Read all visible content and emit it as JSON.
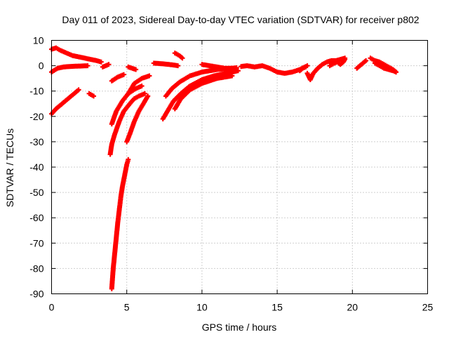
{
  "chart_data": {
    "type": "scatter",
    "title": "Day 011 of 2023, Sidereal Day-to-day VTEC variation (SDTVAR) for receiver p802",
    "xlabel": "GPS time / hours",
    "ylabel": "SDTVAR / TECUs",
    "xlim": [
      0,
      25
    ],
    "ylim": [
      -90,
      10
    ],
    "xticks": [
      "0",
      "5",
      "10",
      "15",
      "20",
      "25"
    ],
    "yticks": [
      "10",
      "0",
      "-10",
      "-20",
      "-30",
      "-40",
      "-50",
      "-60",
      "-70",
      "-80",
      "-90"
    ],
    "grid": true,
    "marker": "+",
    "color": "#ff0000",
    "series": [
      {
        "name": "arc-1",
        "points": [
          [
            0,
            6.5
          ],
          [
            0.3,
            7
          ],
          [
            0.6,
            6
          ],
          [
            1,
            5
          ],
          [
            1.4,
            4
          ],
          [
            1.8,
            3.5
          ],
          [
            2.2,
            3
          ],
          [
            2.6,
            2.5
          ],
          [
            3,
            2
          ],
          [
            3.3,
            1.5
          ]
        ]
      },
      {
        "name": "arc-2",
        "points": [
          [
            0,
            -19
          ],
          [
            0.3,
            -17
          ],
          [
            0.6,
            -15.5
          ],
          [
            0.9,
            -14
          ],
          [
            1.2,
            -12.5
          ],
          [
            1.5,
            -11
          ],
          [
            1.8,
            -9.5
          ]
        ]
      },
      {
        "name": "arc-3",
        "points": [
          [
            0,
            -2.5
          ],
          [
            0.4,
            -1
          ],
          [
            0.8,
            -0.5
          ],
          [
            1.2,
            -0.3
          ],
          [
            1.6,
            -0.2
          ],
          [
            2,
            -0.1
          ],
          [
            2.4,
            0
          ]
        ]
      },
      {
        "name": "arc-4",
        "points": [
          [
            2.5,
            -11
          ],
          [
            2.8,
            -12
          ]
        ]
      },
      {
        "name": "arc-5",
        "points": [
          [
            3.4,
            -0.5
          ],
          [
            3.8,
            0.5
          ]
        ]
      },
      {
        "name": "arc-6",
        "points": [
          [
            4,
            -88
          ],
          [
            4.05,
            -84
          ],
          [
            4.1,
            -80
          ],
          [
            4.2,
            -74
          ],
          [
            4.3,
            -68
          ],
          [
            4.4,
            -62
          ],
          [
            4.5,
            -57
          ],
          [
            4.6,
            -52
          ],
          [
            4.7,
            -48
          ],
          [
            4.8,
            -45
          ],
          [
            4.9,
            -42
          ],
          [
            5,
            -39
          ],
          [
            5.1,
            -37
          ]
        ]
      },
      {
        "name": "arc-7",
        "points": [
          [
            3.9,
            -35
          ],
          [
            4,
            -31
          ],
          [
            4.2,
            -27
          ],
          [
            4.5,
            -22
          ],
          [
            4.8,
            -18
          ],
          [
            5.2,
            -15
          ],
          [
            5.5,
            -13
          ],
          [
            5.8,
            -12
          ],
          [
            6.2,
            -11
          ]
        ]
      },
      {
        "name": "arc-8",
        "points": [
          [
            4,
            -23
          ],
          [
            4.3,
            -18
          ],
          [
            4.7,
            -14
          ],
          [
            5.1,
            -11
          ],
          [
            5.6,
            -9
          ],
          [
            6,
            -8
          ]
        ]
      },
      {
        "name": "arc-9",
        "points": [
          [
            4,
            -6
          ],
          [
            4.4,
            -4.5
          ],
          [
            4.8,
            -3.5
          ]
        ]
      },
      {
        "name": "arc-10",
        "points": [
          [
            5,
            -30
          ],
          [
            5.2,
            -27
          ],
          [
            5.5,
            -22
          ],
          [
            5.8,
            -18
          ],
          [
            6.1,
            -15
          ],
          [
            6.4,
            -12
          ]
        ]
      },
      {
        "name": "arc-11",
        "points": [
          [
            5.1,
            -11
          ],
          [
            5.5,
            -7
          ],
          [
            6,
            -5
          ],
          [
            6.5,
            -4
          ]
        ]
      },
      {
        "name": "arc-12",
        "points": [
          [
            5.1,
            -0.5
          ],
          [
            5.6,
            -1.5
          ]
        ]
      },
      {
        "name": "arc-13",
        "points": [
          [
            6.8,
            1
          ],
          [
            7.3,
            0.8
          ],
          [
            7.8,
            0.5
          ],
          [
            8.2,
            0.2
          ],
          [
            8.4,
            0
          ]
        ]
      },
      {
        "name": "arc-14",
        "points": [
          [
            7.4,
            -21
          ],
          [
            7.7,
            -18
          ],
          [
            8.1,
            -14
          ],
          [
            8.6,
            -11
          ],
          [
            9.2,
            -8
          ],
          [
            10,
            -5.5
          ],
          [
            10.8,
            -4
          ],
          [
            11.6,
            -3
          ],
          [
            12.4,
            -2
          ]
        ]
      },
      {
        "name": "arc-15",
        "points": [
          [
            7.6,
            -12
          ],
          [
            8,
            -9
          ],
          [
            8.5,
            -6.5
          ],
          [
            9.2,
            -4
          ],
          [
            10,
            -2.5
          ],
          [
            11,
            -1.5
          ],
          [
            12,
            -1
          ]
        ]
      },
      {
        "name": "arc-16",
        "points": [
          [
            8.2,
            -17
          ],
          [
            8.6,
            -13
          ],
          [
            9.2,
            -9.5
          ],
          [
            10,
            -7
          ],
          [
            11,
            -5
          ],
          [
            12,
            -4
          ]
        ]
      },
      {
        "name": "arc-17",
        "points": [
          [
            8.2,
            5
          ],
          [
            8.5,
            4
          ],
          [
            8.7,
            3
          ]
        ]
      },
      {
        "name": "arc-18",
        "points": [
          [
            10,
            0.5
          ],
          [
            10.5,
            0
          ],
          [
            11,
            -0.5
          ],
          [
            11.5,
            -1
          ],
          [
            12,
            -1
          ],
          [
            12.3,
            -0.8
          ]
        ]
      },
      {
        "name": "arc-19",
        "points": [
          [
            12.6,
            -0.3
          ],
          [
            13,
            0
          ],
          [
            13.5,
            -0.5
          ],
          [
            14,
            0
          ],
          [
            14.5,
            -1
          ],
          [
            15,
            -2.5
          ],
          [
            15.5,
            -3
          ],
          [
            16,
            -2.5
          ],
          [
            16.5,
            -1.5
          ],
          [
            17,
            0
          ]
        ]
      },
      {
        "name": "arc-20",
        "points": [
          [
            16.5,
            -2
          ],
          [
            16.7,
            -1
          ],
          [
            16.9,
            -0.5
          ]
        ]
      },
      {
        "name": "arc-21",
        "points": [
          [
            17,
            -3
          ],
          [
            17.2,
            -5.5
          ],
          [
            17.4,
            -3
          ],
          [
            17.7,
            -1
          ],
          [
            18,
            0.5
          ],
          [
            18.3,
            1.5
          ],
          [
            18.6,
            2
          ],
          [
            18.9,
            2
          ],
          [
            19.2,
            2.5
          ],
          [
            19.5,
            3
          ]
        ]
      },
      {
        "name": "arc-22",
        "points": [
          [
            18.5,
            0
          ],
          [
            18.8,
            1
          ],
          [
            19,
            1.5
          ],
          [
            19.2,
            0.5
          ],
          [
            19.4,
            1.5
          ],
          [
            19.5,
            2.5
          ]
        ]
      },
      {
        "name": "arc-23",
        "points": [
          [
            20.3,
            -1
          ],
          [
            20.5,
            0
          ],
          [
            20.7,
            1
          ],
          [
            20.9,
            2
          ]
        ]
      },
      {
        "name": "arc-24",
        "points": [
          [
            21.2,
            3
          ],
          [
            21.5,
            2
          ],
          [
            21.8,
            1.5
          ],
          [
            22.1,
            0.5
          ],
          [
            22.4,
            -0.5
          ],
          [
            22.7,
            -1.5
          ],
          [
            22.9,
            -2.5
          ]
        ]
      },
      {
        "name": "arc-25",
        "points": [
          [
            21.5,
            1
          ],
          [
            21.8,
            0
          ],
          [
            22.1,
            -1
          ],
          [
            22.4,
            -1.5
          ],
          [
            22.7,
            -2
          ],
          [
            22.9,
            -2.5
          ]
        ]
      }
    ]
  }
}
